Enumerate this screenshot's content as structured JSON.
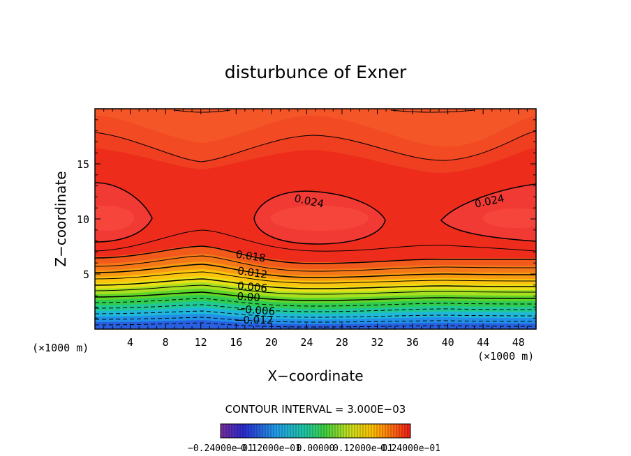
{
  "chart_data": {
    "type": "contour",
    "title": "disturbunce of Exner",
    "xlabel": "X−coordinate",
    "ylabel": "Z−coordinate",
    "x_unit": "(×1000 m)",
    "y_unit": "(×1000 m)",
    "xlim": [
      0,
      50
    ],
    "ylim": [
      0,
      20
    ],
    "x_ticks": [
      4,
      8,
      12,
      16,
      20,
      24,
      28,
      32,
      36,
      40,
      44,
      48
    ],
    "y_ticks": [
      5,
      10,
      15
    ],
    "contour_interval_text": "CONTOUR INTERVAL = 3.000E−03",
    "contour_labels": [
      {
        "text": "0.024",
        "x": 24.2,
        "y": 11.3
      },
      {
        "text": "0.024",
        "x": 44.8,
        "y": 11.3
      },
      {
        "text": "0.018",
        "x": 17.6,
        "y": 6.3
      },
      {
        "text": "0.012",
        "x": 17.8,
        "y": 4.8
      },
      {
        "text": "0.006",
        "x": 17.8,
        "y": 3.5
      },
      {
        "text": "0.00",
        "x": 17.4,
        "y": 2.6
      },
      {
        "text": "−0.006",
        "x": 18.2,
        "y": 1.4
      },
      {
        "text": "−0.012",
        "x": 18.0,
        "y": 0.5
      }
    ],
    "colorbar_labels": [
      "−0.24000e−01",
      "−0.12000e−01",
      "0.00000",
      "0.12000e−01",
      "0.24000e−01"
    ]
  }
}
